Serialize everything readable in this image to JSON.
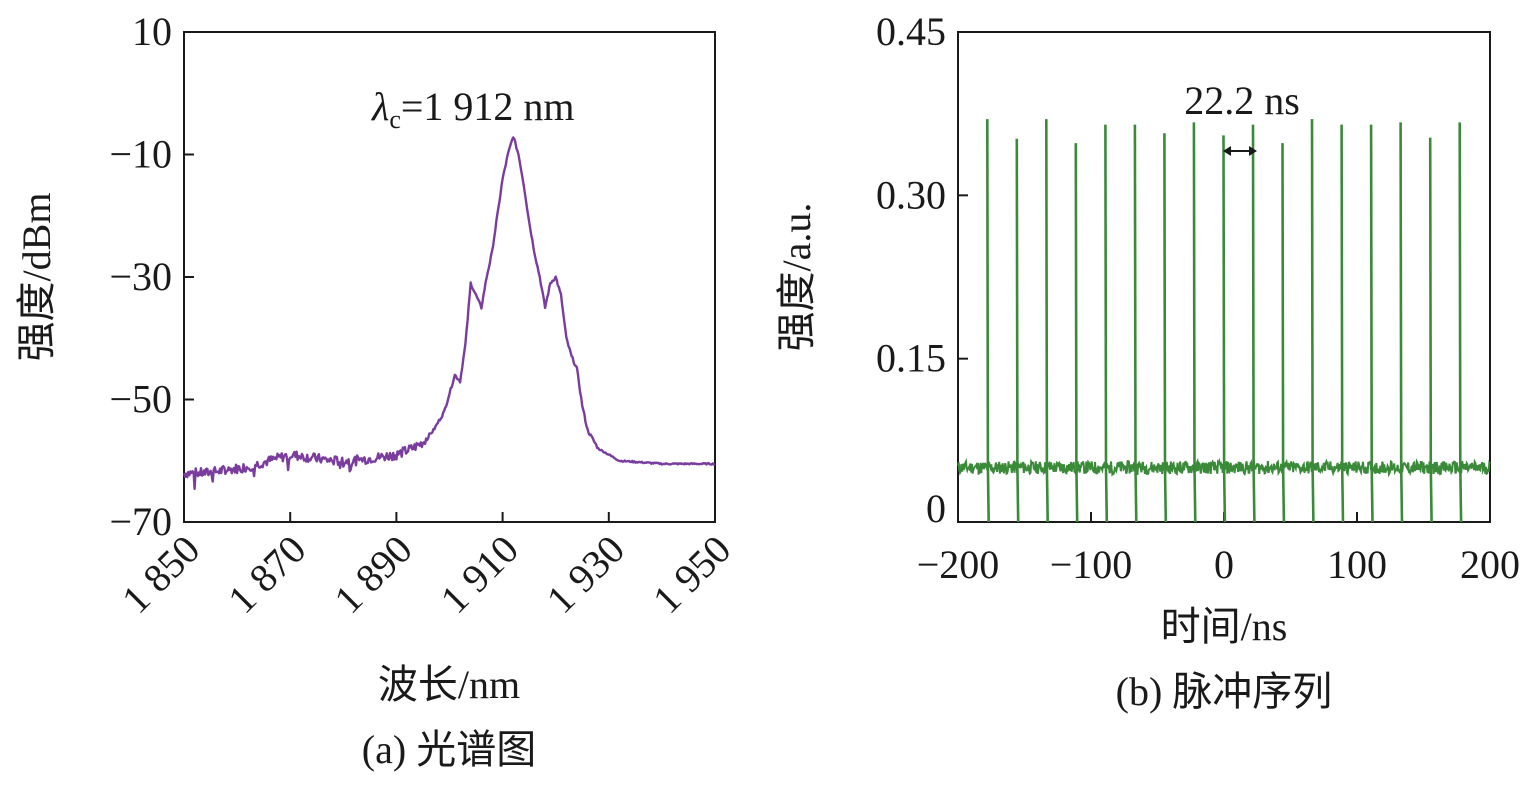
{
  "chart_data": [
    {
      "type": "line",
      "caption": "(a) 光谱图",
      "xlabel": "波长/nm",
      "ylabel": "强度/dBm",
      "xlim": [
        1850,
        1950
      ],
      "ylim": [
        -70,
        10
      ],
      "xticks": [
        1850,
        1870,
        1890,
        1910,
        1930,
        1950
      ],
      "xtick_labels": [
        "1 850",
        "1 870",
        "1 890",
        "1 910",
        "1 930",
        "1 950"
      ],
      "yticks": [
        10,
        -10,
        -30,
        -50,
        -70
      ],
      "ytick_labels": [
        "10",
        "−10",
        "−30",
        "−50",
        "−70"
      ],
      "x_tick_rotation": "45° counter-clockwise",
      "grid": false,
      "color": "#7a3d9e",
      "annotation": {
        "symbol": "λ",
        "subscript": "c",
        "text": "=1 912 nm"
      },
      "series": [
        {
          "x": [
            1850,
            1854,
            1858,
            1862,
            1866,
            1870,
            1874,
            1878,
            1882,
            1886,
            1890,
            1893,
            1895,
            1897,
            1899,
            1900,
            1901,
            1902,
            1903,
            1904,
            1905,
            1906,
            1907,
            1908,
            1909,
            1910,
            1911,
            1912,
            1913,
            1914,
            1915,
            1916,
            1917,
            1918,
            1919,
            1920,
            1921,
            1922,
            1923,
            1924,
            1925,
            1926,
            1928,
            1932,
            1940,
            1950
          ],
          "y": [
            -62,
            -62,
            -61.5,
            -61,
            -60,
            -59,
            -59.5,
            -60,
            -60,
            -59.5,
            -59,
            -58,
            -57,
            -55,
            -52,
            -49,
            -46,
            -47,
            -41,
            -31,
            -33,
            -35,
            -30,
            -26,
            -20,
            -14,
            -10,
            -7,
            -10,
            -15,
            -21,
            -26,
            -30,
            -35,
            -31,
            -30,
            -33,
            -40,
            -43,
            -45,
            -51,
            -55,
            -58,
            -60,
            -60.5,
            -60.5
          ]
        }
      ]
    },
    {
      "type": "line",
      "caption": "(b) 脉冲序列",
      "xlabel": "时间/ns",
      "ylabel": "强度/a.u.",
      "xlim": [
        -200,
        200
      ],
      "ylim": [
        0,
        0.45
      ],
      "xticks": [
        -200,
        -100,
        0,
        100,
        200
      ],
      "xtick_labels": [
        "−200",
        "−100",
        "0",
        "100",
        "200"
      ],
      "yticks": [
        0,
        0.15,
        0.3,
        0.45
      ],
      "ytick_labels": [
        "0",
        "0.15",
        "0.30",
        "0.45"
      ],
      "grid": false,
      "color": "#3a8a3a",
      "baseline": 0.05,
      "pulse_period_ns": 22.2,
      "pulse_times": [
        -178,
        -155.8,
        -133.6,
        -111.4,
        -89.2,
        -67,
        -44.8,
        -22.6,
        -0.4,
        21.8,
        44,
        66.2,
        88.4,
        110.6,
        132.8,
        155,
        177.2
      ],
      "pulse_peaks": [
        0.37,
        0.352,
        0.37,
        0.348,
        0.365,
        0.365,
        0.357,
        0.367,
        0.355,
        0.365,
        0.348,
        0.37,
        0.365,
        0.365,
        0.367,
        0.353,
        0.367
      ],
      "annotation": {
        "text": "22.2 ns",
        "arrow": "↔"
      }
    }
  ]
}
